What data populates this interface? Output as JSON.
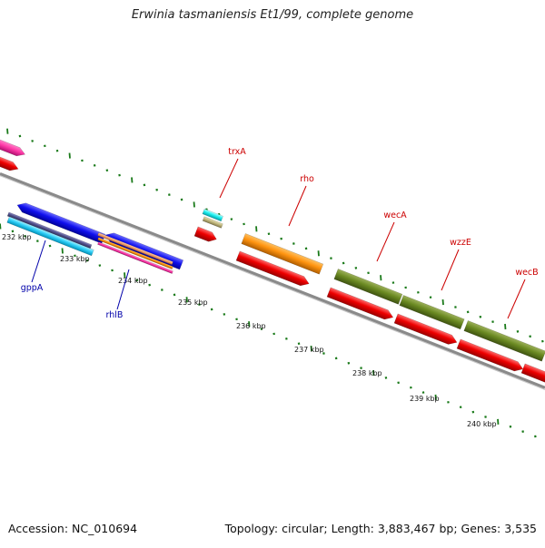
{
  "title": "Erwinia tasmaniensis Et1/99, complete genome",
  "accession": "Accession: NC_010694",
  "topology": "Topology: circular; Length: 3,883,467 bp; Genes: 3,535",
  "colors": {
    "backbone": "#8a8a8a",
    "ticks": "#1a7a1a",
    "gene_label": "#cc0000",
    "gene_label_alt": "#0000aa"
  },
  "ticks": [
    {
      "label": "232 kbp",
      "kbp": 232
    },
    {
      "label": "233 kbp",
      "kbp": 233
    },
    {
      "label": "234 kbp",
      "kbp": 234
    },
    {
      "label": "235 kbp",
      "kbp": 235
    },
    {
      "label": "236 kbp",
      "kbp": 236
    },
    {
      "label": "237 kbp",
      "kbp": 237
    },
    {
      "label": "238 kbp",
      "kbp": 238
    },
    {
      "label": "239 kbp",
      "kbp": 239
    },
    {
      "label": "240 kbp",
      "kbp": 240
    }
  ],
  "gene_labels": [
    {
      "name": "trxA",
      "color": "#cc0000"
    },
    {
      "name": "rho",
      "color": "#cc0000"
    },
    {
      "name": "wecA",
      "color": "#cc0000"
    },
    {
      "name": "wzzE",
      "color": "#cc0000"
    },
    {
      "name": "wecB",
      "color": "#cc0000"
    },
    {
      "name": "gppA",
      "color": "#0000aa"
    },
    {
      "name": "rhlB",
      "color": "#0000aa"
    }
  ]
}
